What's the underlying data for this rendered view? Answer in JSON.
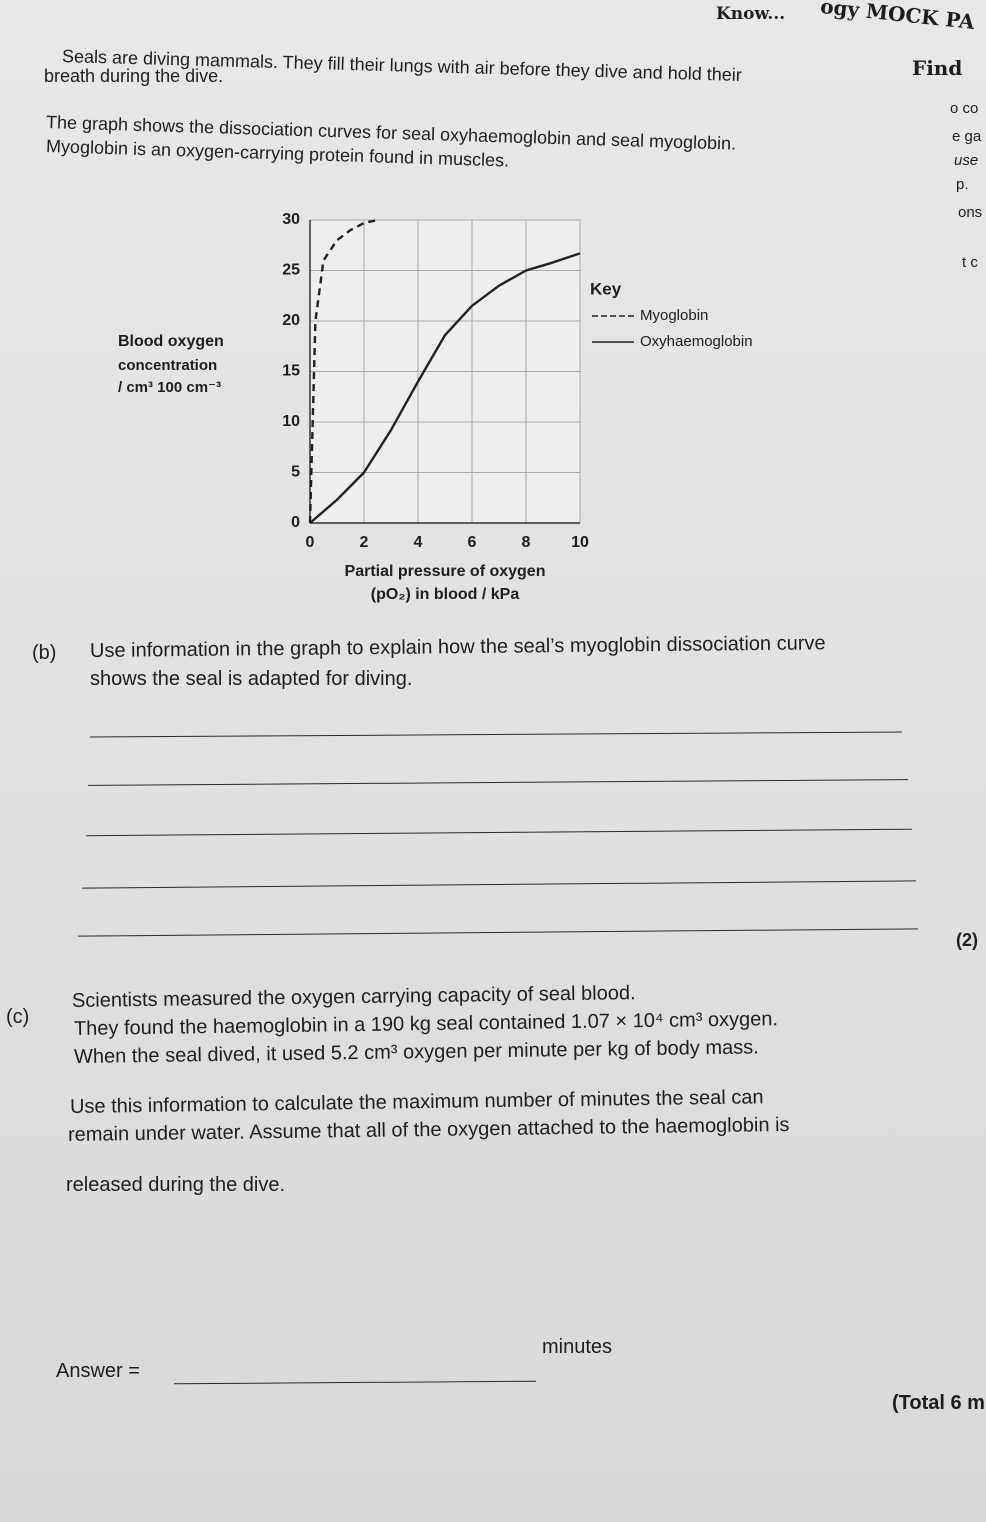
{
  "header": {
    "fragment_1": "Know...",
    "fragment_2": "ogy MOCK PA",
    "fragment_3": "Find",
    "side": [
      "o co",
      "e ga",
      "use",
      "p.",
      "ons",
      "t c"
    ]
  },
  "intro": [
    "Seals are diving mammals. They fill their lungs with air before they dive and hold their",
    "breath during the dive.",
    "The graph shows the dissociation curves for seal oxyhaemoglobin and seal myoglobin.",
    "Myoglobin is an oxygen-carrying protein found in muscles."
  ],
  "chart_data": {
    "type": "line",
    "y_label": [
      "Blood oxygen",
      "concentration",
      "/ cm³ 100 cm⁻³"
    ],
    "x_label": [
      "Partial pressure of oxygen",
      "(pO₂) in blood / kPa"
    ],
    "legend_title": "Key",
    "xlim": [
      0,
      10
    ],
    "ylim": [
      0,
      30
    ],
    "xticks": [
      0,
      2,
      4,
      6,
      8,
      10
    ],
    "yticks": [
      0,
      5,
      10,
      15,
      20,
      25,
      30
    ],
    "grid": true,
    "series": [
      {
        "name": "Myoglobin",
        "color": "#222222",
        "style": "dashed",
        "x": [
          0,
          0.1,
          0.2,
          0.5,
          1,
          1.5,
          2,
          2.5
        ],
        "values": [
          0,
          10,
          20,
          26,
          28,
          29,
          29.7,
          30
        ]
      },
      {
        "name": "Oxyhaemoglobin",
        "color": "#222222",
        "style": "solid",
        "x": [
          0,
          1,
          2,
          3,
          4,
          5,
          6,
          7,
          8,
          9,
          10
        ],
        "values": [
          0,
          2.3,
          5,
          9.2,
          14,
          18.6,
          21.5,
          23.5,
          25,
          25.8,
          26.7
        ]
      }
    ]
  },
  "question_b": {
    "label": "(b)",
    "text": [
      "Use information in the graph to explain how the seal’s myoglobin dissociation curve",
      "shows the seal is adapted for diving."
    ],
    "marks": "(2)"
  },
  "question_c": {
    "label": "(c)",
    "text": [
      "Scientists measured the oxygen carrying capacity of seal blood.",
      "They found the haemoglobin in a 190 kg seal contained 1.07 × 10⁴ cm³ oxygen.",
      "When the seal dived, it used 5.2 cm³ oxygen per minute per kg of body mass.",
      "Use this information to calculate the maximum number of minutes the seal can",
      "remain under water. Assume that all of the oxygen attached to the haemoglobin is",
      "released during the dive."
    ],
    "answer": "Answer =",
    "unit": "minutes",
    "total": "(Total 6 m"
  }
}
